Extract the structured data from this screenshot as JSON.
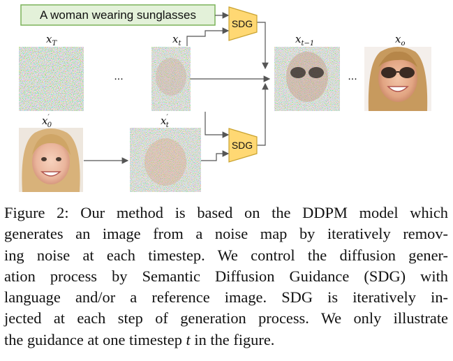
{
  "figure": {
    "prompt": "A woman wearing sunglasses",
    "sdg_label": "SDG",
    "ellipsis": "...",
    "labels": {
      "xT": {
        "base": "x",
        "sub": "T",
        "sup": ""
      },
      "xt": {
        "base": "x",
        "sub": "t",
        "sup": ""
      },
      "xt1": {
        "base": "x",
        "sub": "t−1",
        "sup": ""
      },
      "xo": {
        "base": "x",
        "sub": "o",
        "sup": ""
      },
      "x0p": {
        "base": "x",
        "sub": "0",
        "sup": "′"
      },
      "xtp": {
        "base": "x",
        "sub": "t",
        "sup": "′"
      }
    },
    "colors": {
      "prompt_fill": "#e3f1d9",
      "prompt_border": "#7cb35a",
      "sdg_fill": "#ffd873",
      "sdg_border": "#c9a230",
      "arrow": "#555555"
    }
  },
  "caption": {
    "lines": [
      "Figure 2: Our method is based on the DDPM model which",
      "generates an image from a noise map by iteratively remov-",
      "ing noise at each timestep. We control the diffusion gener-",
      "ation process by Semantic Diffusion Guidance (SDG) with",
      "language and/or a reference image.  SDG is iteratively in-",
      "jected at each step of generation process. We only illustrate"
    ],
    "last_line_prefix": "the guidance at one timestep ",
    "last_line_var": "t",
    "last_line_suffix": " in the figure."
  }
}
